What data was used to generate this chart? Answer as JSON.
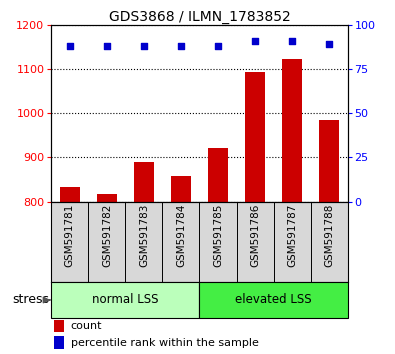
{
  "title": "GDS3868 / ILMN_1783852",
  "samples": [
    "GSM591781",
    "GSM591782",
    "GSM591783",
    "GSM591784",
    "GSM591785",
    "GSM591786",
    "GSM591787",
    "GSM591788"
  ],
  "counts": [
    833,
    818,
    890,
    858,
    920,
    1093,
    1122,
    985
  ],
  "percentile_ranks": [
    88,
    88,
    88,
    88,
    88,
    91,
    91,
    89
  ],
  "ylim_left": [
    800,
    1200
  ],
  "yticks_left": [
    800,
    900,
    1000,
    1100,
    1200
  ],
  "ylim_right": [
    0,
    100
  ],
  "yticks_right": [
    0,
    25,
    50,
    75,
    100
  ],
  "groups": [
    {
      "label": "normal LSS",
      "start": 0,
      "end": 4,
      "color": "#bbffbb"
    },
    {
      "label": "elevated LSS",
      "start": 4,
      "end": 8,
      "color": "#44ee44"
    }
  ],
  "bar_color": "#cc0000",
  "dot_color": "#0000cc",
  "sample_box_color": "#d8d8d8",
  "stress_label": "stress",
  "legend_items": [
    {
      "color": "#cc0000",
      "label": "count"
    },
    {
      "color": "#0000cc",
      "label": "percentile rank within the sample"
    }
  ],
  "grid_color": "black",
  "title_fontsize": 10,
  "tick_fontsize": 8,
  "label_fontsize": 7.5,
  "group_fontsize": 8.5,
  "stress_fontsize": 9,
  "legend_fontsize": 8
}
